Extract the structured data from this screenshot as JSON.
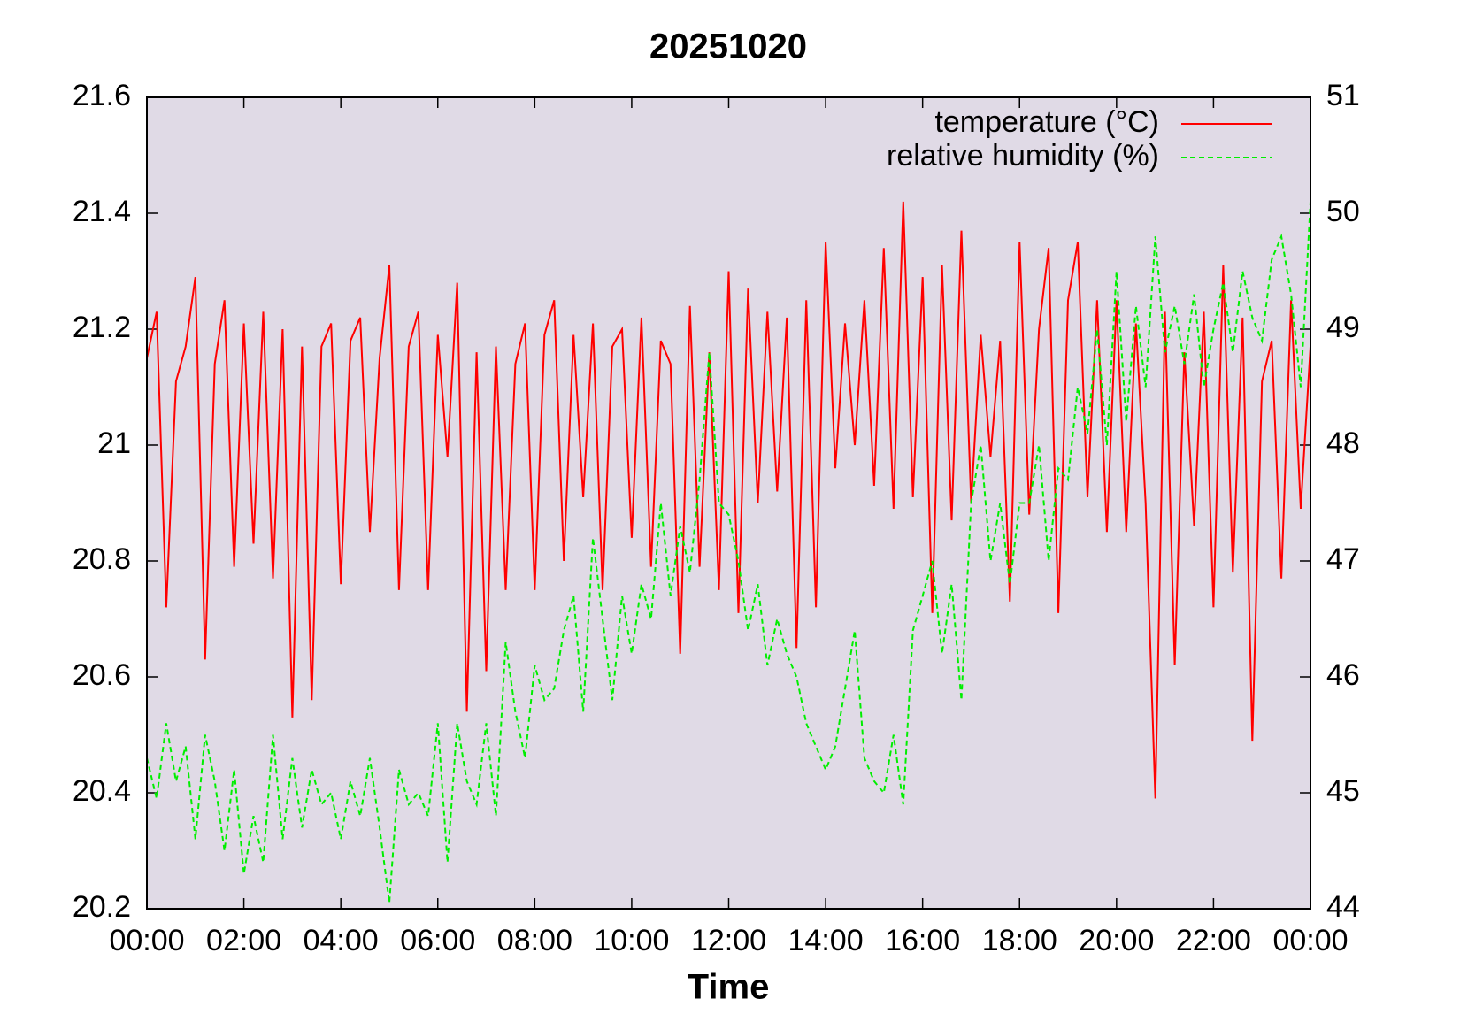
{
  "chart_data": {
    "type": "line",
    "title": "20251020",
    "xlabel": "Time",
    "x": [
      0,
      0.2,
      0.4,
      0.6,
      0.8,
      1,
      1.2,
      1.4,
      1.6,
      1.8,
      2,
      2.2,
      2.4,
      2.6,
      2.8,
      3,
      3.2,
      3.4,
      3.6,
      3.8,
      4,
      4.2,
      4.4,
      4.6,
      4.8,
      5,
      5.2,
      5.4,
      5.6,
      5.8,
      6,
      6.2,
      6.4,
      6.6,
      6.8,
      7,
      7.2,
      7.4,
      7.6,
      7.8,
      8,
      8.2,
      8.4,
      8.6,
      8.8,
      9,
      9.2,
      9.4,
      9.6,
      9.8,
      10,
      10.2,
      10.4,
      10.6,
      10.8,
      11,
      11.2,
      11.4,
      11.6,
      11.8,
      12,
      12.2,
      12.4,
      12.6,
      12.8,
      13,
      13.2,
      13.4,
      13.6,
      13.8,
      14,
      14.2,
      14.4,
      14.6,
      14.8,
      15,
      15.2,
      15.4,
      15.6,
      15.8,
      16,
      16.2,
      16.4,
      16.6,
      16.8,
      17,
      17.2,
      17.4,
      17.6,
      17.8,
      18,
      18.2,
      18.4,
      18.6,
      18.8,
      19,
      19.2,
      19.4,
      19.6,
      19.8,
      20,
      20.2,
      20.4,
      20.6,
      20.8,
      21,
      21.2,
      21.4,
      21.6,
      21.8,
      22,
      22.2,
      22.4,
      22.6,
      22.8,
      23,
      23.2,
      23.4,
      23.6,
      23.8,
      24
    ],
    "series": [
      {
        "name": "temperature (°C)",
        "color": "#ff0000",
        "dashed": false,
        "axis": "y",
        "values": [
          21.15,
          21.23,
          20.72,
          21.11,
          21.17,
          21.29,
          20.63,
          21.14,
          21.25,
          20.79,
          21.21,
          20.83,
          21.23,
          20.77,
          21.2,
          20.53,
          21.17,
          20.56,
          21.17,
          21.21,
          20.76,
          21.18,
          21.22,
          20.85,
          21.15,
          21.31,
          20.75,
          21.17,
          21.23,
          20.75,
          21.19,
          20.98,
          21.28,
          20.54,
          21.16,
          20.61,
          21.17,
          20.75,
          21.14,
          21.21,
          20.75,
          21.19,
          21.25,
          20.8,
          21.19,
          20.91,
          21.21,
          20.75,
          21.17,
          21.2,
          20.84,
          21.22,
          20.79,
          21.18,
          21.14,
          20.64,
          21.24,
          20.79,
          21.16,
          20.75,
          21.3,
          20.71,
          21.27,
          20.9,
          21.23,
          20.92,
          21.22,
          20.65,
          21.25,
          20.72,
          21.35,
          20.96,
          21.21,
          21.0,
          21.25,
          20.93,
          21.34,
          20.89,
          21.42,
          20.91,
          21.29,
          20.71,
          21.31,
          20.87,
          21.37,
          20.9,
          21.19,
          20.98,
          21.18,
          20.73,
          21.35,
          20.88,
          21.2,
          21.34,
          20.71,
          21.25,
          21.35,
          20.91,
          21.25,
          20.85,
          21.25,
          20.85,
          21.21,
          20.9,
          20.39,
          21.23,
          20.62,
          21.16,
          20.86,
          21.23,
          20.72,
          21.31,
          20.78,
          21.22,
          20.49,
          21.11,
          21.18,
          20.77,
          21.25,
          20.89,
          21.17
        ]
      },
      {
        "name": "relative humidity (%)",
        "color": "#00ee00",
        "dashed": true,
        "axis": "y2",
        "values": [
          45.3,
          44.95,
          45.6,
          45.1,
          45.4,
          44.6,
          45.5,
          45.1,
          44.5,
          45.2,
          44.3,
          44.8,
          44.4,
          45.5,
          44.6,
          45.3,
          44.7,
          45.2,
          44.9,
          45.0,
          44.6,
          45.1,
          44.8,
          45.3,
          44.7,
          44.05,
          45.2,
          44.9,
          45.0,
          44.8,
          45.6,
          44.4,
          45.6,
          45.1,
          44.9,
          45.6,
          44.8,
          46.3,
          45.7,
          45.3,
          46.1,
          45.8,
          45.9,
          46.4,
          46.7,
          45.7,
          47.2,
          46.5,
          45.8,
          46.7,
          46.2,
          46.8,
          46.5,
          47.5,
          46.7,
          47.3,
          46.9,
          47.7,
          48.8,
          47.5,
          47.4,
          47.0,
          46.4,
          46.8,
          46.1,
          46.5,
          46.2,
          46.0,
          45.6,
          45.4,
          45.2,
          45.4,
          45.9,
          46.4,
          45.3,
          45.1,
          45.0,
          45.5,
          44.9,
          46.4,
          46.7,
          47.0,
          46.2,
          46.8,
          45.8,
          47.5,
          48.0,
          47.0,
          47.5,
          46.8,
          47.5,
          47.5,
          48.0,
          47.0,
          47.8,
          47.7,
          48.5,
          48.1,
          49.0,
          48.0,
          49.5,
          48.2,
          49.2,
          48.5,
          49.8,
          48.8,
          49.2,
          48.7,
          49.3,
          48.5,
          49.0,
          49.4,
          48.8,
          49.5,
          49.1,
          48.9,
          49.6,
          49.8,
          49.3,
          48.5,
          50.1
        ]
      }
    ],
    "xlim": [
      0,
      24
    ],
    "xticks": [
      {
        "value": 0,
        "label": "00:00"
      },
      {
        "value": 2,
        "label": "02:00"
      },
      {
        "value": 4,
        "label": "04:00"
      },
      {
        "value": 6,
        "label": "06:00"
      },
      {
        "value": 8,
        "label": "08:00"
      },
      {
        "value": 10,
        "label": "10:00"
      },
      {
        "value": 12,
        "label": "12:00"
      },
      {
        "value": 14,
        "label": "14:00"
      },
      {
        "value": 16,
        "label": "16:00"
      },
      {
        "value": 18,
        "label": "18:00"
      },
      {
        "value": 20,
        "label": "20:00"
      },
      {
        "value": 22,
        "label": "22:00"
      },
      {
        "value": 24,
        "label": "00:00"
      }
    ],
    "ylim": [
      20.2,
      21.6
    ],
    "yticks": [
      20.2,
      20.4,
      20.6,
      20.8,
      21,
      21.2,
      21.4,
      21.6
    ],
    "y2lim": [
      44,
      51
    ],
    "y2ticks": [
      44,
      45,
      46,
      47,
      48,
      49,
      50,
      51
    ],
    "plot_background": "#e0dae6",
    "legend": "top-right",
    "grid": false
  }
}
